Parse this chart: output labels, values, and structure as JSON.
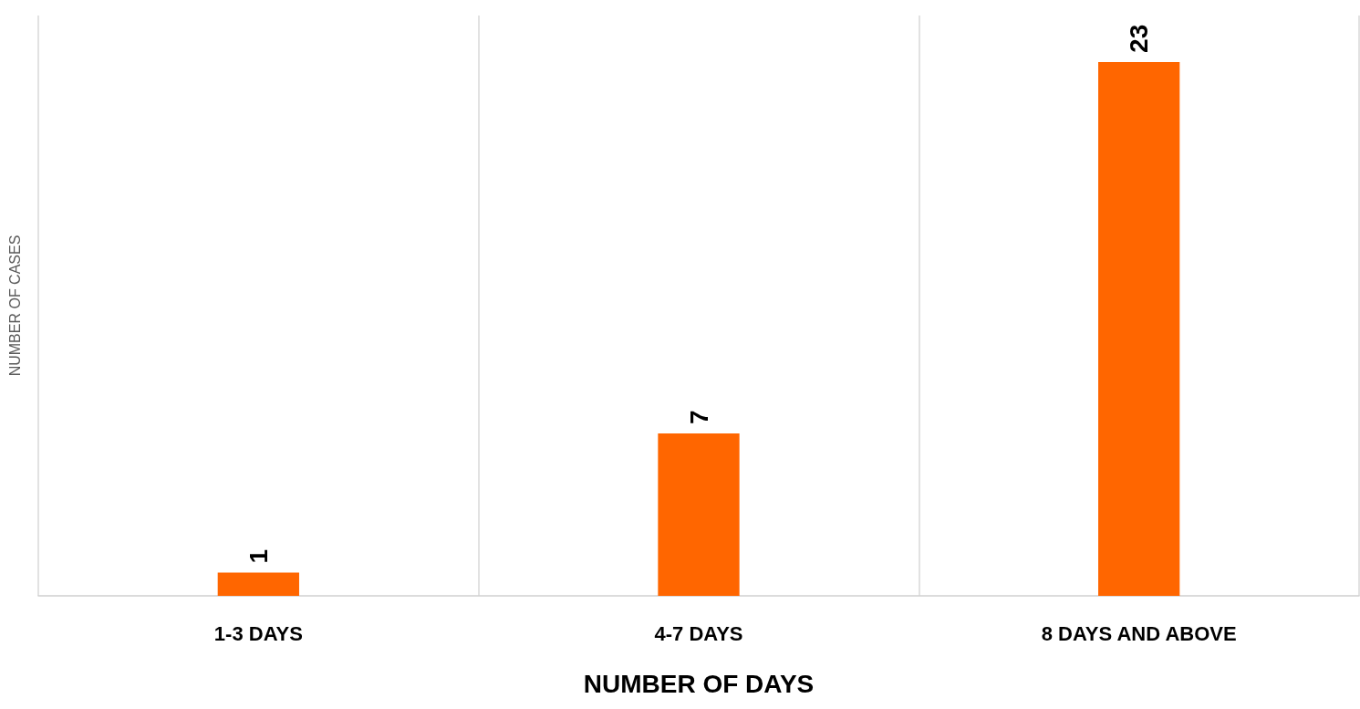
{
  "chart_data": {
    "type": "bar",
    "xlabel": "NUMBER OF DAYS",
    "ylabel": "NUMBER OF CASES",
    "categories": [
      "1-3 DAYS",
      "4-7 DAYS",
      "8 DAYS AND ABOVE"
    ],
    "values": [
      1,
      7,
      23
    ],
    "color": "#ff6600",
    "data_labels": true,
    "grid": "x"
  }
}
